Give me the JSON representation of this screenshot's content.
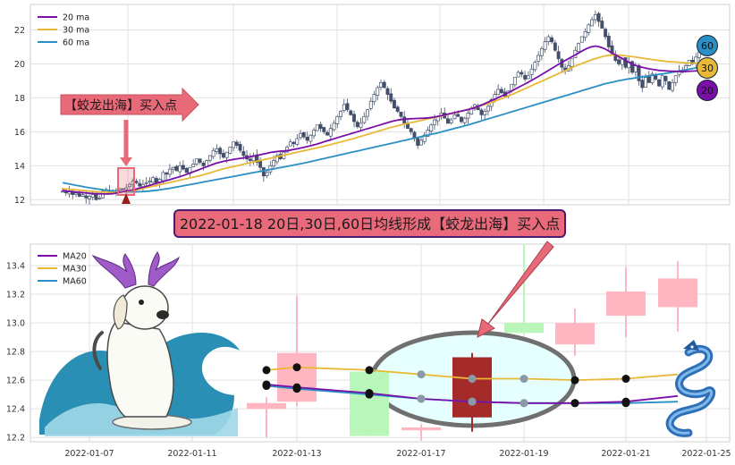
{
  "chart_data": [
    {
      "type": "candlestick",
      "ylim": [
        11.7,
        23.5
      ],
      "y_ticks": [
        "12",
        "14",
        "16",
        "18",
        "20",
        "22"
      ],
      "grid": true,
      "legend_position": "top-left",
      "series": [
        {
          "name": "20 ma",
          "color": "#7a0fa8"
        },
        {
          "name": "30 ma",
          "color": "#e8b836"
        },
        {
          "name": "60 ma",
          "color": "#2a8fc4"
        }
      ],
      "close": [
        12.5,
        12.4,
        12.5,
        12.3,
        12.4,
        12.2,
        12.3,
        12.1,
        12.2,
        12.3,
        12.0,
        12.1,
        12.5,
        12.6,
        12.4,
        12.45,
        12.55,
        12.65,
        12.6,
        12.7,
        12.9,
        13.1,
        13.0,
        12.8,
        12.9,
        13.0,
        13.1,
        13.3,
        13.0,
        13.2,
        13.6,
        13.5,
        13.8,
        13.9,
        13.7,
        14.0,
        13.8,
        13.6,
        13.9,
        14.1,
        14.4,
        14.2,
        14.0,
        14.3,
        14.6,
        14.9,
        15.0,
        14.7,
        14.5,
        14.8,
        15.1,
        15.4,
        15.2,
        14.9,
        14.6,
        14.4,
        14.3,
        14.6,
        14.2,
        13.9,
        13.4,
        13.6,
        14.0,
        14.3,
        14.6,
        14.4,
        14.8,
        15.1,
        15.4,
        15.3,
        15.6,
        15.9,
        15.7,
        15.5,
        15.8,
        16.1,
        16.4,
        16.2,
        16.0,
        15.8,
        16.2,
        16.5,
        16.9,
        17.2,
        17.6,
        17.3,
        17.0,
        16.6,
        16.3,
        16.5,
        16.9,
        17.3,
        17.8,
        18.2,
        18.6,
        18.9,
        18.6,
        18.2,
        17.8,
        17.4,
        17.2,
        16.9,
        16.5,
        16.2,
        16.0,
        15.6,
        15.2,
        15.5,
        15.8,
        16.1,
        16.4,
        16.7,
        16.9,
        17.1,
        16.8,
        16.5,
        16.7,
        17.0,
        16.9,
        16.6,
        16.8,
        17.1,
        17.4,
        17.6,
        17.3,
        17.0,
        17.2,
        17.5,
        17.9,
        18.2,
        18.5,
        18.3,
        18.1,
        18.4,
        18.8,
        19.2,
        19.5,
        19.4,
        19.1,
        19.3,
        19.7,
        20.1,
        20.5,
        20.9,
        21.3,
        21.6,
        21.3,
        20.8,
        20.3,
        19.8,
        19.6,
        19.9,
        20.3,
        20.8,
        21.2,
        21.6,
        21.9,
        22.3,
        22.6,
        22.9,
        22.5,
        22.1,
        21.6,
        21.0,
        20.6,
        20.2,
        20.0,
        20.3,
        19.8,
        20.1,
        19.5,
        19.9,
        19.0,
        18.6,
        19.2,
        18.9,
        19.4,
        19.1,
        18.7,
        19.3,
        19.0,
        18.5,
        18.9,
        19.3,
        19.6,
        19.5,
        19.9,
        20.2,
        20.0,
        20.4,
        20.7
      ],
      "ma20": [
        12.55,
        12.5,
        12.48,
        12.45,
        12.43,
        12.4,
        12.38,
        12.36,
        12.35,
        12.34,
        12.34,
        12.35,
        12.4,
        12.45,
        12.5,
        12.55,
        12.6,
        12.68,
        12.75,
        12.82,
        12.9,
        12.98,
        13.05,
        13.12,
        13.2,
        13.28,
        13.36,
        13.45,
        13.55,
        13.65,
        13.75,
        13.85,
        13.95,
        14.05,
        14.15,
        14.22,
        14.28,
        14.33,
        14.38,
        14.42,
        14.46,
        14.5,
        14.55,
        14.6,
        14.66,
        14.72,
        14.78,
        14.82,
        14.85,
        14.87,
        14.9,
        14.95,
        15.0,
        15.06,
        15.12,
        15.18,
        15.25,
        15.33,
        15.42,
        15.5,
        15.58,
        15.66,
        15.74,
        15.82,
        15.9,
        15.98,
        16.06,
        16.14,
        16.22,
        16.3,
        16.38,
        16.46,
        16.54,
        16.62,
        16.68,
        16.72,
        16.75,
        16.77,
        16.78,
        16.79,
        16.8,
        16.82,
        16.85,
        16.9,
        16.96,
        17.02,
        17.08,
        17.14,
        17.2,
        17.26,
        17.32,
        17.4,
        17.5,
        17.6,
        17.72,
        17.84,
        17.96,
        18.08,
        18.2,
        18.34,
        18.48,
        18.62,
        18.76,
        18.9,
        19.05,
        19.2,
        19.36,
        19.52,
        19.68,
        19.84,
        20.0,
        20.15,
        20.3,
        20.45,
        20.6,
        20.75,
        20.9,
        21.0,
        21.05,
        21.0,
        20.9,
        20.75,
        20.6,
        20.45,
        20.3,
        20.15,
        20.0,
        19.9,
        19.82,
        19.76,
        19.7,
        19.66,
        19.62,
        19.6,
        19.58,
        19.57,
        19.56,
        19.56,
        19.56,
        19.57,
        19.58,
        19.6
      ],
      "ma30": [
        12.65,
        12.62,
        12.6,
        12.58,
        12.55,
        12.53,
        12.5,
        12.48,
        12.46,
        12.45,
        12.44,
        12.43,
        12.44,
        12.46,
        12.48,
        12.52,
        12.56,
        12.62,
        12.68,
        12.74,
        12.8,
        12.86,
        12.92,
        12.98,
        13.04,
        13.1,
        13.16,
        13.22,
        13.28,
        13.34,
        13.4,
        13.47,
        13.55,
        13.63,
        13.71,
        13.79,
        13.86,
        13.92,
        13.98,
        14.04,
        14.1,
        14.16,
        14.22,
        14.28,
        14.34,
        14.4,
        14.46,
        14.52,
        14.58,
        14.64,
        14.7,
        14.76,
        14.82,
        14.88,
        14.94,
        15.0,
        15.06,
        15.12,
        15.18,
        15.25,
        15.32,
        15.39,
        15.46,
        15.53,
        15.6,
        15.68,
        15.76,
        15.84,
        15.92,
        16.0,
        16.08,
        16.16,
        16.24,
        16.31,
        16.38,
        16.44,
        16.5,
        16.56,
        16.62,
        16.68,
        16.74,
        16.8,
        16.86,
        16.92,
        16.98,
        17.04,
        17.1,
        17.17,
        17.24,
        17.31,
        17.38,
        17.46,
        17.54,
        17.62,
        17.7,
        17.8,
        17.9,
        18.0,
        18.1,
        18.22,
        18.34,
        18.46,
        18.58,
        18.7,
        18.82,
        18.94,
        19.06,
        19.18,
        19.3,
        19.42,
        19.54,
        19.66,
        19.78,
        19.9,
        20.0,
        20.1,
        20.2,
        20.3,
        20.38,
        20.45,
        20.5,
        20.52,
        20.52,
        20.5,
        20.47,
        20.44,
        20.4,
        20.36,
        20.32,
        20.28,
        20.24,
        20.2,
        20.17,
        20.14,
        20.12,
        20.1,
        20.08,
        20.06,
        20.05,
        20.04,
        20.03
      ],
      "ma60": [
        13.0,
        12.95,
        12.9,
        12.85,
        12.8,
        12.75,
        12.7,
        12.66,
        12.62,
        12.58,
        12.55,
        12.52,
        12.5,
        12.48,
        12.47,
        12.46,
        12.46,
        12.47,
        12.48,
        12.5,
        12.53,
        12.56,
        12.6,
        12.64,
        12.68,
        12.73,
        12.78,
        12.83,
        12.88,
        12.93,
        12.98,
        13.03,
        13.08,
        13.13,
        13.18,
        13.23,
        13.28,
        13.33,
        13.38,
        13.43,
        13.48,
        13.53,
        13.58,
        13.63,
        13.68,
        13.73,
        13.78,
        13.83,
        13.88,
        13.93,
        13.98,
        14.03,
        14.08,
        14.13,
        14.19,
        14.25,
        14.31,
        14.37,
        14.43,
        14.49,
        14.55,
        14.61,
        14.67,
        14.73,
        14.79,
        14.85,
        14.91,
        14.97,
        15.03,
        15.09,
        15.15,
        15.21,
        15.27,
        15.33,
        15.39,
        15.45,
        15.51,
        15.57,
        15.63,
        15.69,
        15.75,
        15.81,
        15.87,
        15.93,
        16.0,
        16.07,
        16.14,
        16.21,
        16.28,
        16.35,
        16.42,
        16.5,
        16.58,
        16.66,
        16.74,
        16.82,
        16.9,
        16.98,
        17.06,
        17.14,
        17.22,
        17.3,
        17.38,
        17.46,
        17.54,
        17.62,
        17.7,
        17.78,
        17.86,
        17.94,
        18.02,
        18.1,
        18.18,
        18.26,
        18.34,
        18.42,
        18.5,
        18.58,
        18.66,
        18.74,
        18.82,
        18.88,
        18.94,
        19.0,
        19.05,
        19.1,
        19.14,
        19.18,
        19.22,
        19.26,
        19.3,
        19.34,
        19.38,
        19.42,
        19.46,
        19.5,
        19.55,
        19.6,
        19.65,
        19.7,
        19.75,
        19.8
      ]
    },
    {
      "type": "candlestick",
      "x": [
        "2022-01-12",
        "2022-01-13",
        "2022-01-14",
        "2022-01-17",
        "2022-01-18",
        "2022-01-19",
        "2022-01-20",
        "2022-01-21",
        "2022-01-24"
      ],
      "x_ticks": [
        "2022-01-07",
        "2022-01-11",
        "2022-01-13",
        "2022-01-17",
        "2022-01-19",
        "2022-01-21",
        "2022-01-25"
      ],
      "ylim": [
        12.17,
        13.55
      ],
      "y_ticks": [
        "12.2",
        "12.4",
        "12.6",
        "12.8",
        "13.0",
        "13.2",
        "13.4"
      ],
      "grid": true,
      "legend_position": "top-left",
      "series": [
        {
          "name": "MA20",
          "color": "#7a0fa8"
        },
        {
          "name": "MA30",
          "color": "#e8b836"
        },
        {
          "name": "MA60",
          "color": "#2a8fc4"
        }
      ],
      "candles": [
        {
          "date": "2022-01-12",
          "open": 12.4,
          "close": 12.44,
          "high": 12.48,
          "low": 12.2,
          "color": "#ffb6c1"
        },
        {
          "date": "2022-01-13",
          "open": 12.45,
          "close": 12.79,
          "high": 13.19,
          "low": 12.42,
          "color": "#ffb6c1"
        },
        {
          "date": "2022-01-14",
          "open": 12.66,
          "close": 12.21,
          "high": 12.68,
          "low": 12.21,
          "color": "#b9f6b9"
        },
        {
          "date": "2022-01-17",
          "open": 12.25,
          "close": 12.27,
          "high": 12.29,
          "low": 12.18,
          "color": "#ffb6c1"
        },
        {
          "date": "2022-01-18",
          "open": 12.34,
          "close": 12.76,
          "high": 12.79,
          "low": 12.24,
          "color": "#a52a2a"
        },
        {
          "date": "2022-01-19",
          "open": 13.0,
          "close": 12.93,
          "high": 13.55,
          "low": 12.92,
          "color": "#b9f6b9"
        },
        {
          "date": "2022-01-20",
          "open": 12.85,
          "close": 13.0,
          "high": 13.1,
          "low": 12.77,
          "color": "#ffb6c1"
        },
        {
          "date": "2022-01-21",
          "open": 13.05,
          "close": 13.22,
          "high": 13.39,
          "low": 12.9,
          "color": "#ffb6c1"
        },
        {
          "date": "2022-01-24",
          "open": 13.11,
          "close": 13.31,
          "high": 13.43,
          "low": 12.94,
          "color": "#ffb6c1"
        }
      ],
      "ma20": [
        12.57,
        12.55,
        12.51,
        12.47,
        12.45,
        12.44,
        12.44,
        12.45,
        12.49
      ],
      "ma30": [
        12.67,
        12.69,
        12.67,
        12.64,
        12.61,
        12.61,
        12.6,
        12.61,
        12.64
      ],
      "ma60": [
        12.56,
        12.54,
        12.5,
        12.47,
        12.45,
        12.44,
        12.44,
        12.44,
        12.45
      ]
    }
  ],
  "annotations": {
    "arrow_label": "【蛟龙出海】买入点",
    "banner": "2022-01-18 20日,30日,60日均线形成【蛟龙出海】买入点",
    "badges": [
      "60",
      "30",
      "20"
    ]
  },
  "colors": {
    "ma20": "#7a0fa8",
    "ma30": "#e8b836",
    "ma60": "#2a8fc4",
    "up_candle_dark": "#44506b",
    "highlight": "#e86a78",
    "ellipse_fill": "#e6ffff",
    "ellipse_stroke": "#707070",
    "banner_fill": "#e96a7a",
    "banner_stroke": "#4b1a72"
  },
  "decorations": {
    "left_picture": "dog-riding-wave-with-dragon-horns",
    "right_picture": "blue-dragon"
  }
}
